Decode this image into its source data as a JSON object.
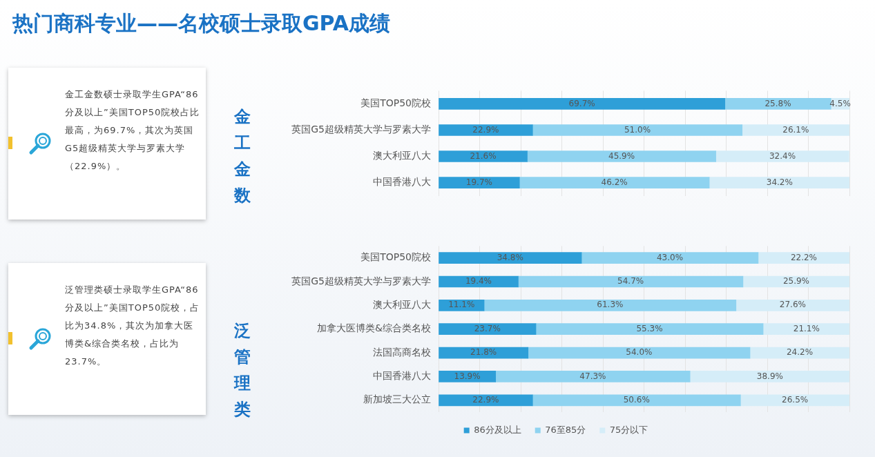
{
  "chart_data": [
    {
      "type": "other",
      "annotations": [
        "金工金数硕士录取学生GPA“86分及以上”美国TOP50院校占比最高，为69.7%，其次为英国G5超级精英大学与罗素大学（22.9%）。"
      ]
    },
    {
      "type": "bar",
      "title": "热门商科专业——名校硕士录取GPA成绩",
      "ylabel": "金工金数",
      "orientation": "horizontal",
      "stacked": true,
      "grid": "x",
      "tick_labels": "y",
      "legend": false,
      "categories": [
        "美国TOP50院校",
        "英国G5超级精英大学与罗素大学",
        "澳大利亚八大",
        "中国香港八大"
      ],
      "xlim": [
        0,
        100
      ],
      "xticks": [
        {
          "value": 0,
          "label": null
        },
        {
          "value": 10,
          "label": null
        },
        {
          "value": 20,
          "label": null
        },
        {
          "value": 30,
          "label": null
        },
        {
          "value": 40,
          "label": null
        },
        {
          "value": 50,
          "label": null
        },
        {
          "value": 60,
          "label": null
        },
        {
          "value": 70,
          "label": null
        },
        {
          "value": 80,
          "label": null
        },
        {
          "value": 90,
          "label": null
        },
        {
          "value": 100,
          "label": null
        }
      ],
      "series": [
        {
          "color": "#2e9fd8",
          "values": [
            69.7,
            22.9,
            21.6,
            19.7
          ],
          "value_labels": [
            "69.7%",
            "22.9%",
            "21.6%",
            "19.7%"
          ]
        },
        {
          "color": "#8fd3f0",
          "values": [
            25.8,
            51.0,
            45.9,
            46.2
          ],
          "value_labels": [
            "25.8%",
            "51.0%",
            "45.9%",
            "46.2%"
          ]
        },
        {
          "color": "#d5edf8",
          "values": [
            4.5,
            26.1,
            32.4,
            34.2
          ],
          "value_labels": [
            "4.5%",
            "26.1%",
            "32.4%",
            "34.2%"
          ]
        }
      ]
    },
    {
      "type": "other",
      "annotations": [
        "泛管理类硕士录取学生GPA“86分及以上”美国TOP50院校，占比为34.8%，其次为加拿大医博类&综合类名校，占比为23.7%。"
      ]
    },
    {
      "type": "bar",
      "ylabel": "泛管理类",
      "orientation": "horizontal",
      "stacked": true,
      "grid": "x",
      "tick_labels": "y",
      "legend": "bottom",
      "categories": [
        "美国TOP50院校",
        "英国G5超级精英大学与罗素大学",
        "澳大利亚八大",
        "加拿大医博类&综合类名校",
        "法国高商名校",
        "中国香港八大",
        "新加坡三大公立"
      ],
      "xlim": [
        0,
        100
      ],
      "xticks": [
        {
          "value": 0,
          "label": null
        },
        {
          "value": 10,
          "label": null
        },
        {
          "value": 20,
          "label": null
        },
        {
          "value": 30,
          "label": null
        },
        {
          "value": 40,
          "label": null
        },
        {
          "value": 50,
          "label": null
        },
        {
          "value": 60,
          "label": null
        },
        {
          "value": 70,
          "label": null
        },
        {
          "value": 80,
          "label": null
        },
        {
          "value": 90,
          "label": null
        },
        {
          "value": 100,
          "label": null
        }
      ],
      "series": [
        {
          "name": "86分及以上",
          "color": "#2e9fd8",
          "values": [
            34.8,
            19.4,
            11.1,
            23.7,
            21.8,
            13.9,
            22.9
          ],
          "value_labels": [
            "34.8%",
            "19.4%",
            "11.1%",
            "23.7%",
            "21.8%",
            "13.9%",
            "22.9%"
          ]
        },
        {
          "name": "76至85分",
          "color": "#8fd3f0",
          "values": [
            43.0,
            54.7,
            61.3,
            55.3,
            54.0,
            47.3,
            50.6
          ],
          "value_labels": [
            "43.0%",
            "54.7%",
            "61.3%",
            "55.3%",
            "54.0%",
            "47.3%",
            "50.6%"
          ]
        },
        {
          "name": "75分以下",
          "color": "#d5edf8",
          "values": [
            22.2,
            25.9,
            27.6,
            21.1,
            24.2,
            38.9,
            26.5
          ],
          "value_labels": [
            "22.2%",
            "25.9%",
            "27.6%",
            "21.1%",
            "24.2%",
            "38.9%",
            "26.5%"
          ]
        }
      ]
    }
  ]
}
